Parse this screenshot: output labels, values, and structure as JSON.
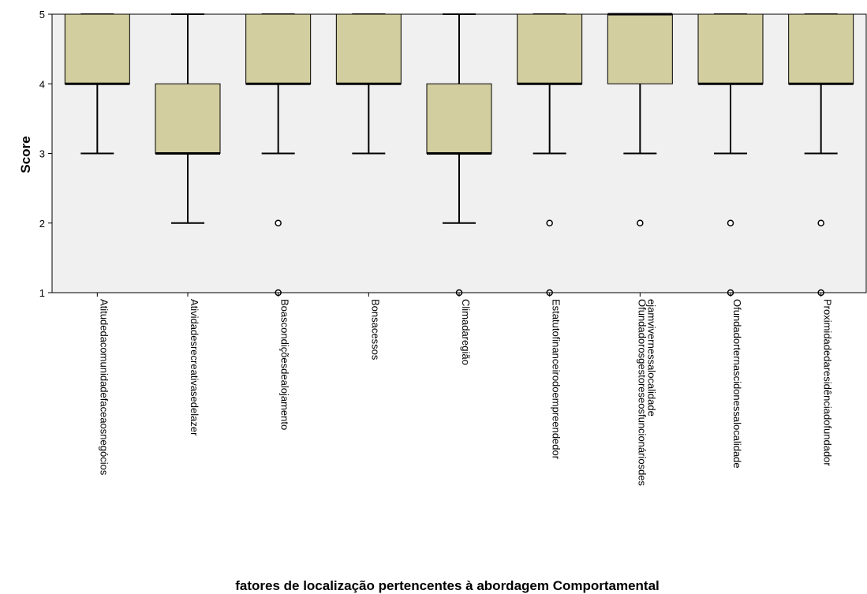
{
  "chart_data": {
    "type": "boxplot",
    "xlabel": "fatores de localização pertencentes à abordagem Comportamental",
    "ylabel": "Score",
    "ylim": [
      1,
      5
    ],
    "yticks": [
      1,
      2,
      3,
      4,
      5
    ],
    "grid": false,
    "colors": {
      "plot_bg": "#f0f0f0",
      "box_fill": "#d3ce9f",
      "line": "#000000"
    },
    "categories": [
      {
        "label": [
          "Atitudedacomunidadefaceaosnegócios"
        ],
        "min": 3,
        "q1": 4,
        "median": 4,
        "q3": 5,
        "max": 5,
        "outliers": []
      },
      {
        "label": [
          "Atividadesrecreativasedelazer"
        ],
        "min": 2,
        "q1": 3,
        "median": 3,
        "q3": 4,
        "max": 5,
        "outliers": []
      },
      {
        "label": [
          "Boascondiçõesdealojamento"
        ],
        "min": 3,
        "q1": 4,
        "median": 4,
        "q3": 5,
        "max": 5,
        "outliers": [
          2,
          1
        ]
      },
      {
        "label": [
          "Bonsacessos"
        ],
        "min": 3,
        "q1": 4,
        "median": 4,
        "q3": 5,
        "max": 5,
        "outliers": []
      },
      {
        "label": [
          "Climadaregião"
        ],
        "min": 2,
        "q1": 3,
        "median": 3,
        "q3": 4,
        "max": 5,
        "outliers": [
          1
        ]
      },
      {
        "label": [
          "Estatutofinanceirodoempreendedor"
        ],
        "min": 3,
        "q1": 4,
        "median": 4,
        "q3": 5,
        "max": 5,
        "outliers": [
          2,
          1
        ]
      },
      {
        "label": [
          "Ofundadorosgestoreseosfuncionáriosdes",
          "ejamvivernessalocalidade"
        ],
        "min": 3,
        "q1": 4,
        "median": 5,
        "q3": 5,
        "max": 5,
        "outliers": [
          2
        ]
      },
      {
        "label": [
          "Ofundadorternascidonessalocalidade"
        ],
        "min": 3,
        "q1": 4,
        "median": 4,
        "q3": 5,
        "max": 5,
        "outliers": [
          2,
          1
        ]
      },
      {
        "label": [
          "Proximidadedaresidênciadofundador"
        ],
        "min": 3,
        "q1": 4,
        "median": 4,
        "q3": 5,
        "max": 5,
        "outliers": [
          2,
          1
        ]
      }
    ]
  }
}
